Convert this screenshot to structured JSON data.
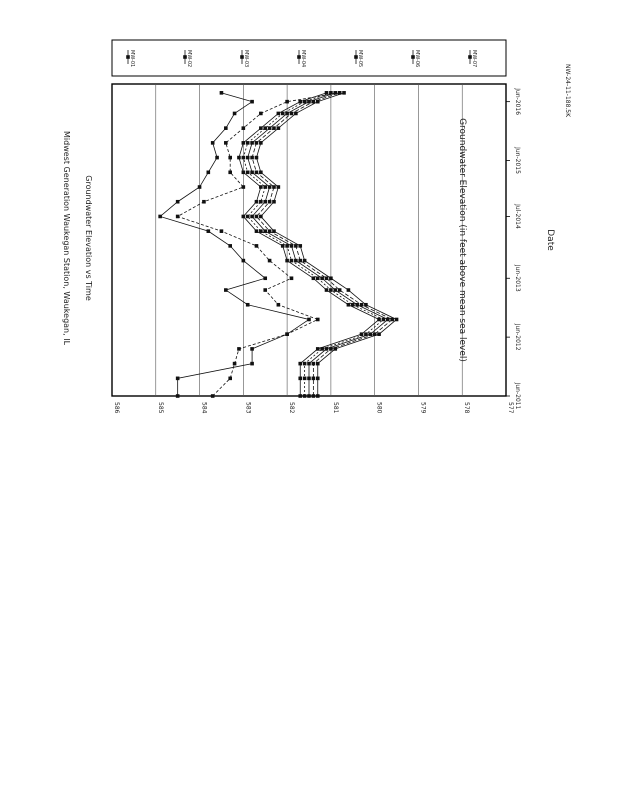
{
  "page": {
    "footer_code": "NW-24-11-188.5K"
  },
  "chart_data": {
    "type": "line",
    "orientation": "rotated-90-clockwise",
    "title": "Midwest Generation Waukegan Station, Waukegan, IL",
    "subtitle": "Groundwater Elevation vs Time",
    "xlabel": "Date",
    "ylabel": "Groundwater Elevation (in feet above mean sea level)",
    "x_tick_labels": [
      "Jun-2011",
      "Jun-2012",
      "Jun-2013",
      "Jul-2014",
      "Jun-2015",
      "Jun-2016"
    ],
    "x_ticks_decimal_year": [
      2011.45,
      2012.45,
      2013.45,
      2014.5,
      2015.45,
      2016.45
    ],
    "xlim": [
      2011.45,
      2016.75
    ],
    "y_tick_labels": [
      "577",
      "578",
      "579",
      "580",
      "581",
      "582",
      "583",
      "584",
      "585",
      "586"
    ],
    "ylim": [
      577,
      586
    ],
    "grid": "horizontal",
    "legend_position": "right",
    "series": [
      {
        "name": "MW-01",
        "x": [
          2011.45,
          2011.75,
          2012.0,
          2012.25,
          2012.5,
          2012.75,
          2013.0,
          2013.25,
          2013.45,
          2013.75,
          2014.0,
          2014.25,
          2014.5,
          2014.75,
          2015.0,
          2015.25,
          2015.5,
          2015.75,
          2016.0,
          2016.25,
          2016.45,
          2016.6
        ],
        "y": [
          584.5,
          584.5,
          582.8,
          582.8,
          582.0,
          581.5,
          582.9,
          583.4,
          582.5,
          583.0,
          583.3,
          583.8,
          584.9,
          584.5,
          584.0,
          583.8,
          583.6,
          583.7,
          583.4,
          583.2,
          582.8,
          583.5
        ]
      },
      {
        "name": "MW-02",
        "x": [
          2011.45,
          2011.75,
          2012.0,
          2012.25,
          2012.5,
          2012.75,
          2013.0,
          2013.25,
          2013.45,
          2013.75,
          2014.0,
          2014.25,
          2014.5,
          2014.75,
          2015.0,
          2015.25,
          2015.5,
          2015.75,
          2016.0,
          2016.25,
          2016.45,
          2016.6
        ],
        "y": [
          583.7,
          583.3,
          583.2,
          583.1,
          582.0,
          581.3,
          582.2,
          582.5,
          581.9,
          582.4,
          582.7,
          583.5,
          584.5,
          583.9,
          583.0,
          583.3,
          583.3,
          583.4,
          583.0,
          582.6,
          582.0,
          580.8
        ]
      },
      {
        "name": "MW-03",
        "x": [
          2011.45,
          2011.75,
          2012.0,
          2012.25,
          2012.5,
          2012.75,
          2013.0,
          2013.25,
          2013.45,
          2013.75,
          2014.0,
          2014.25,
          2014.5,
          2014.75,
          2015.0,
          2015.25,
          2015.5,
          2015.75,
          2016.0,
          2016.25,
          2016.45,
          2016.6
        ],
        "y": [
          581.3,
          581.3,
          581.3,
          580.9,
          579.9,
          579.5,
          580.2,
          580.6,
          581.0,
          581.6,
          581.7,
          582.3,
          582.6,
          582.3,
          582.2,
          582.6,
          582.7,
          582.6,
          582.2,
          581.8,
          581.3,
          580.7
        ]
      },
      {
        "name": "MW-04",
        "x": [
          2011.45,
          2011.75,
          2012.0,
          2012.25,
          2012.5,
          2012.75,
          2013.0,
          2013.25,
          2013.45,
          2013.75,
          2014.0,
          2014.25,
          2014.5,
          2014.75,
          2015.0,
          2015.25,
          2015.5,
          2015.75,
          2016.0,
          2016.25,
          2016.45,
          2016.6
        ],
        "y": [
          581.4,
          581.4,
          581.4,
          581.0,
          580.0,
          579.6,
          580.3,
          580.8,
          581.1,
          581.7,
          581.8,
          582.4,
          582.7,
          582.4,
          582.3,
          582.7,
          582.8,
          582.7,
          582.3,
          581.9,
          581.4,
          580.8
        ]
      },
      {
        "name": "MW-05",
        "x": [
          2011.45,
          2011.75,
          2012.0,
          2012.25,
          2012.5,
          2012.75,
          2013.0,
          2013.25,
          2013.45,
          2013.75,
          2014.0,
          2014.25,
          2014.5,
          2014.75,
          2015.0,
          2015.25,
          2015.5,
          2015.75,
          2016.0,
          2016.25,
          2016.45,
          2016.6
        ],
        "y": [
          581.5,
          581.5,
          581.5,
          581.1,
          580.1,
          579.7,
          580.4,
          580.9,
          581.2,
          581.8,
          581.9,
          582.5,
          582.8,
          582.5,
          582.4,
          582.8,
          582.9,
          582.8,
          582.4,
          582.0,
          581.5,
          580.9
        ]
      },
      {
        "name": "MW-06",
        "x": [
          2011.45,
          2011.75,
          2012.0,
          2012.25,
          2012.5,
          2012.75,
          2013.0,
          2013.25,
          2013.45,
          2013.75,
          2014.0,
          2014.25,
          2014.5,
          2014.75,
          2015.0,
          2015.25,
          2015.5,
          2015.75,
          2016.0,
          2016.25,
          2016.45,
          2016.6
        ],
        "y": [
          581.6,
          581.6,
          581.6,
          581.2,
          580.2,
          579.8,
          580.5,
          581.0,
          581.3,
          581.9,
          582.0,
          582.6,
          582.9,
          582.6,
          582.5,
          582.9,
          583.0,
          582.9,
          582.5,
          582.1,
          581.6,
          581.0
        ]
      },
      {
        "name": "MW-07",
        "x": [
          2011.45,
          2011.75,
          2012.0,
          2012.25,
          2012.5,
          2012.75,
          2013.0,
          2013.25,
          2013.45,
          2013.75,
          2014.0,
          2014.25,
          2014.5,
          2014.75,
          2015.0,
          2015.25,
          2015.5,
          2015.75,
          2016.0,
          2016.25,
          2016.45,
          2016.6
        ],
        "y": [
          581.7,
          581.7,
          581.7,
          581.3,
          580.3,
          579.9,
          580.6,
          581.1,
          581.4,
          582.0,
          582.1,
          582.7,
          583.0,
          582.7,
          582.6,
          583.0,
          583.1,
          583.0,
          582.6,
          582.2,
          581.7,
          581.1
        ]
      }
    ],
    "legend_labels": [
      "MW-01",
      "MW-02",
      "MW-03",
      "MW-04",
      "MW-05",
      "MW-06",
      "MW-07"
    ]
  }
}
